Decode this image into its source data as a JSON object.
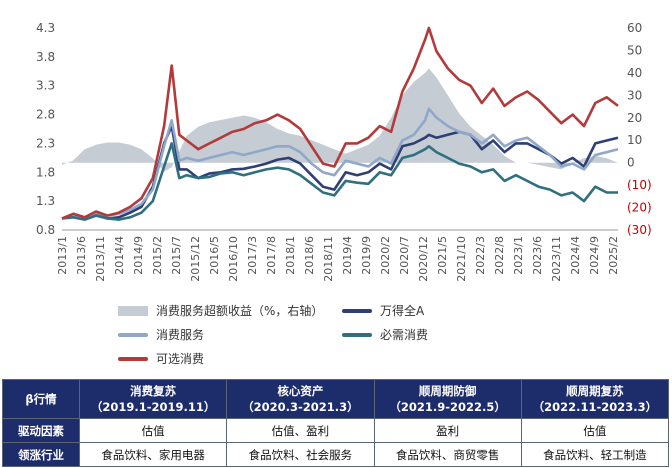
{
  "chart_data": {
    "type": "line",
    "left_axis": {
      "ticks": [
        "4.3",
        "3.8",
        "3.3",
        "2.8",
        "2.3",
        "1.8",
        "1.3",
        "0.8"
      ],
      "ylim": [
        0.8,
        4.3
      ]
    },
    "right_axis": {
      "ticks": [
        "60",
        "50",
        "40",
        "30",
        "20",
        "10",
        "0",
        "(10)",
        "(20)",
        "(30)"
      ],
      "ylim": [
        -30,
        60
      ],
      "negative_color": "#c00000"
    },
    "x_tick_labels": [
      "2013/1",
      "2013/6",
      "2013/11",
      "2014/4",
      "2014/9",
      "2015/2",
      "2015/7",
      "2015/12",
      "2016/5",
      "2016/10",
      "2017/3",
      "2017/8",
      "2018/1",
      "2018/6",
      "2018/11",
      "2019/4",
      "2019/9",
      "2020/2",
      "2020/7",
      "2020/12",
      "2021/5",
      "2021/10",
      "2022/3",
      "2022/8",
      "2023/1",
      "2023/6",
      "2023/11",
      "2024/4",
      "2024/9",
      "2025/2"
    ],
    "x": [
      "2013/1",
      "2013/4",
      "2013/7",
      "2013/10",
      "2014/1",
      "2014/4",
      "2014/7",
      "2014/10",
      "2015/1",
      "2015/4",
      "2015/6",
      "2015/8",
      "2015/10",
      "2016/1",
      "2016/4",
      "2016/7",
      "2016/10",
      "2017/1",
      "2017/4",
      "2017/7",
      "2017/10",
      "2018/1",
      "2018/4",
      "2018/7",
      "2018/10",
      "2019/1",
      "2019/4",
      "2019/7",
      "2019/10",
      "2020/1",
      "2020/4",
      "2020/7",
      "2020/10",
      "2021/1",
      "2021/2",
      "2021/4",
      "2021/7",
      "2021/10",
      "2022/1",
      "2022/4",
      "2022/7",
      "2022/10",
      "2023/1",
      "2023/4",
      "2023/7",
      "2023/10",
      "2024/1",
      "2024/4",
      "2024/7",
      "2024/10",
      "2025/1",
      "2025/4"
    ],
    "series": [
      {
        "name": "消费服务超额收益（%，右轴）",
        "axis": "right",
        "kind": "area",
        "color": "#c5ccd3",
        "values": [
          -1,
          1,
          6,
          8,
          9,
          9,
          8,
          6,
          2,
          -4,
          -2,
          5,
          12,
          16,
          18,
          19,
          20,
          21,
          20,
          18,
          15,
          13,
          12,
          10,
          8,
          6,
          4,
          6,
          8,
          12,
          20,
          30,
          36,
          40,
          42,
          38,
          30,
          22,
          16,
          12,
          8,
          3,
          0,
          0,
          -1,
          -2,
          -3,
          0,
          2,
          3,
          2,
          0
        ]
      },
      {
        "name": "万得全A",
        "axis": "left",
        "kind": "line",
        "color": "#2e3f73",
        "values": [
          1.0,
          1.05,
          1.0,
          1.08,
          1.0,
          1.02,
          1.1,
          1.2,
          1.55,
          2.3,
          2.6,
          1.85,
          1.85,
          1.7,
          1.78,
          1.8,
          1.85,
          1.86,
          1.9,
          1.95,
          2.02,
          2.05,
          1.95,
          1.75,
          1.55,
          1.5,
          1.8,
          1.75,
          1.8,
          1.95,
          1.85,
          2.25,
          2.3,
          2.4,
          2.45,
          2.4,
          2.45,
          2.5,
          2.45,
          2.2,
          2.35,
          2.15,
          2.3,
          2.3,
          2.2,
          2.1,
          1.95,
          2.05,
          1.9,
          2.3,
          2.35,
          2.4
        ]
      },
      {
        "name": "消费服务",
        "axis": "left",
        "kind": "line",
        "color": "#8fa7c9",
        "values": [
          1.0,
          1.05,
          1.02,
          1.1,
          1.05,
          1.08,
          1.15,
          1.25,
          1.5,
          2.25,
          2.7,
          2.0,
          2.05,
          2.0,
          2.05,
          2.1,
          2.15,
          2.1,
          2.15,
          2.2,
          2.25,
          2.25,
          2.15,
          1.95,
          1.8,
          1.75,
          2.0,
          1.95,
          1.9,
          2.05,
          1.95,
          2.35,
          2.45,
          2.7,
          2.9,
          2.75,
          2.6,
          2.5,
          2.45,
          2.3,
          2.45,
          2.25,
          2.35,
          2.4,
          2.25,
          2.1,
          1.9,
          1.95,
          1.85,
          2.1,
          2.15,
          2.2
        ]
      },
      {
        "name": "必需消费",
        "axis": "left",
        "kind": "line",
        "color": "#2f6f80",
        "values": [
          1.0,
          1.02,
          0.98,
          1.05,
          1.0,
          0.98,
          1.02,
          1.1,
          1.3,
          1.9,
          2.3,
          1.7,
          1.75,
          1.7,
          1.72,
          1.78,
          1.8,
          1.75,
          1.8,
          1.85,
          1.88,
          1.85,
          1.75,
          1.6,
          1.45,
          1.4,
          1.65,
          1.62,
          1.6,
          1.8,
          1.75,
          2.05,
          2.1,
          2.2,
          2.25,
          2.15,
          2.05,
          1.95,
          1.9,
          1.8,
          1.85,
          1.65,
          1.75,
          1.65,
          1.55,
          1.5,
          1.4,
          1.45,
          1.3,
          1.55,
          1.45,
          1.45
        ]
      },
      {
        "name": "可选消费",
        "axis": "left",
        "kind": "line",
        "color": "#b33a3a",
        "values": [
          1.0,
          1.08,
          1.02,
          1.12,
          1.05,
          1.1,
          1.2,
          1.35,
          1.7,
          2.6,
          3.65,
          2.45,
          2.35,
          2.2,
          2.3,
          2.4,
          2.5,
          2.55,
          2.65,
          2.7,
          2.8,
          2.7,
          2.55,
          2.25,
          1.95,
          1.9,
          2.3,
          2.3,
          2.4,
          2.6,
          2.5,
          3.2,
          3.6,
          4.1,
          4.3,
          3.9,
          3.6,
          3.4,
          3.3,
          3.0,
          3.25,
          2.95,
          3.1,
          3.2,
          3.05,
          2.85,
          2.65,
          2.8,
          2.6,
          3.0,
          3.1,
          2.95
        ]
      }
    ]
  },
  "table": {
    "corner": "β行情",
    "columns": [
      {
        "title": "消费复苏",
        "period": "（2019.1-2019.11）"
      },
      {
        "title": "核心资产",
        "period": "（2020.3-2021.3）"
      },
      {
        "title": "顺周期防御",
        "period": "（2021.9-2022.5）"
      },
      {
        "title": "顺周期复苏",
        "period": "（2022.11-2023.3）"
      }
    ],
    "rows": [
      {
        "header": "驱动因素",
        "cells": [
          "估值",
          "估值、盈利",
          "盈利",
          "估值"
        ]
      },
      {
        "header": "领涨行业",
        "cells": [
          "食品饮料、家用电器",
          "食品饮料、社会服务",
          "食品饮料、商贸零售",
          "食品饮料、轻工制造"
        ]
      }
    ]
  }
}
